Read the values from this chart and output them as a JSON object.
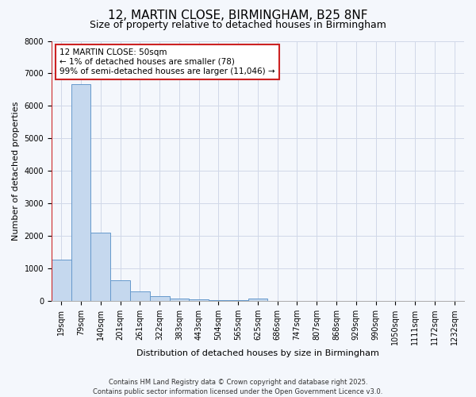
{
  "title_line1": "12, MARTIN CLOSE, BIRMINGHAM, B25 8NF",
  "title_line2": "Size of property relative to detached houses in Birmingham",
  "xlabel": "Distribution of detached houses by size in Birmingham",
  "ylabel": "Number of detached properties",
  "categories": [
    "19sqm",
    "79sqm",
    "140sqm",
    "201sqm",
    "261sqm",
    "322sqm",
    "383sqm",
    "443sqm",
    "504sqm",
    "565sqm",
    "625sqm",
    "686sqm",
    "747sqm",
    "807sqm",
    "868sqm",
    "929sqm",
    "990sqm",
    "1050sqm",
    "1111sqm",
    "1172sqm",
    "1232sqm"
  ],
  "values": [
    1280,
    6680,
    2100,
    640,
    310,
    140,
    80,
    45,
    30,
    25,
    70,
    0,
    0,
    0,
    0,
    0,
    0,
    0,
    0,
    0,
    0
  ],
  "bar_color": "#c5d8ee",
  "bar_edge_color": "#6699cc",
  "property_line_color": "#cc2222",
  "ylim": [
    0,
    8000
  ],
  "yticks": [
    0,
    1000,
    2000,
    3000,
    4000,
    5000,
    6000,
    7000,
    8000
  ],
  "annotation_title": "12 MARTIN CLOSE: 50sqm",
  "annotation_line1": "← 1% of detached houses are smaller (78)",
  "annotation_line2": "99% of semi-detached houses are larger (11,046) →",
  "annotation_box_facecolor": "#ffffff",
  "annotation_box_edgecolor": "#cc2222",
  "footer_line1": "Contains HM Land Registry data © Crown copyright and database right 2025.",
  "footer_line2": "Contains public sector information licensed under the Open Government Licence v3.0.",
  "bg_color": "#f4f7fc",
  "grid_color": "#d0d8e8",
  "title_fontsize": 11,
  "subtitle_fontsize": 9,
  "ylabel_fontsize": 8,
  "xlabel_fontsize": 8,
  "tick_fontsize": 7,
  "footer_fontsize": 6
}
